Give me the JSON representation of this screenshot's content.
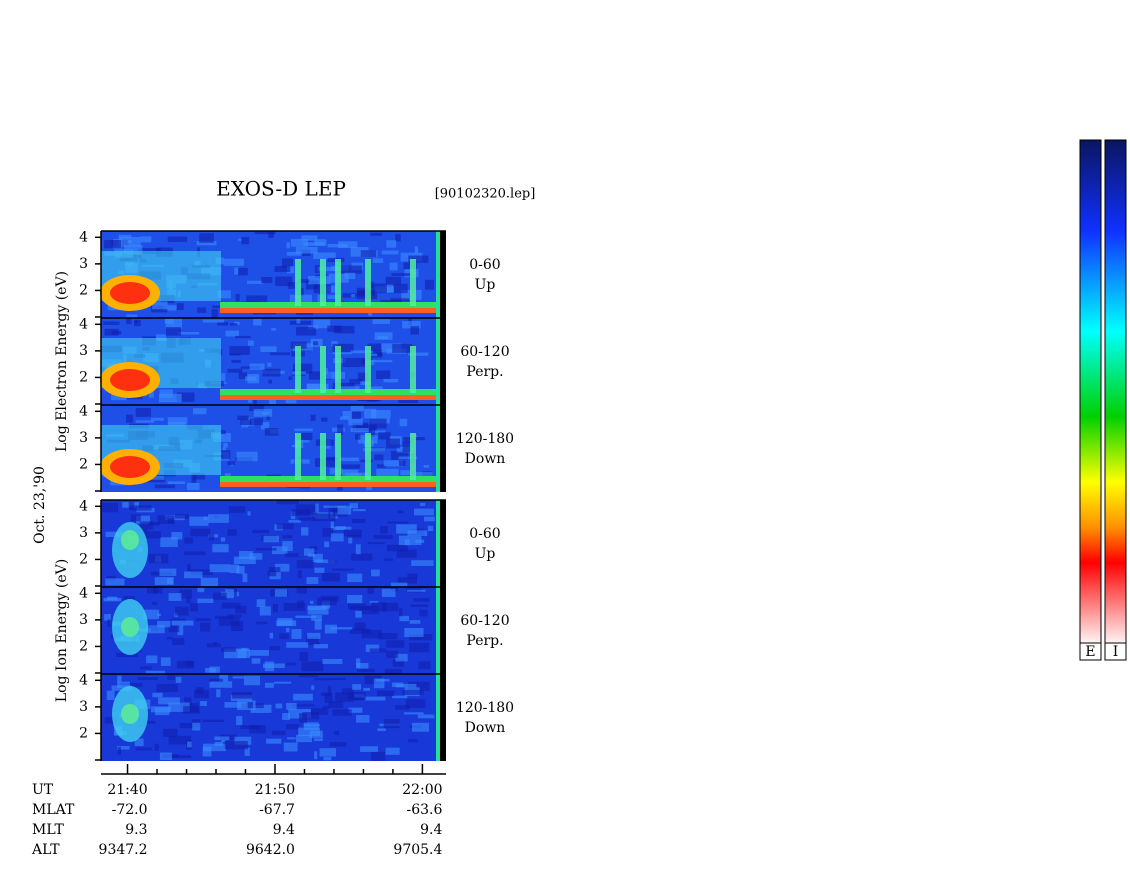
{
  "chart_data": {
    "type": "spectrogram",
    "title": "EXOS-D LEP",
    "subtitle": "[90102320.lep]",
    "date_label": "Oct. 23,'90",
    "groups": [
      {
        "ylabel": "Log  Electron  Energy (eV)",
        "panels": [
          {
            "angle": "0-60",
            "direction": "Up"
          },
          {
            "angle": "60-120",
            "direction": "Perp."
          },
          {
            "angle": "120-180",
            "direction": "Down"
          }
        ]
      },
      {
        "ylabel": "Log  Ion  Energy (eV)",
        "panels": [
          {
            "angle": "0-60",
            "direction": "Up"
          },
          {
            "angle": "60-120",
            "direction": "Perp."
          },
          {
            "angle": "120-180",
            "direction": "Down"
          }
        ]
      }
    ],
    "ylim": [
      1,
      4.2
    ],
    "yticks": [
      2,
      3,
      4
    ],
    "xlabel": "UT",
    "xlim": [
      1298.2,
      1321.6
    ],
    "xticks": [
      {
        "value": 1300,
        "label": "21:40"
      },
      {
        "value": 1310,
        "label": "21:50"
      },
      {
        "value": 1320,
        "label": "22:00"
      }
    ],
    "xminor_ticks": [
      1302,
      1304,
      1306,
      1308,
      1312,
      1314,
      1316,
      1318
    ],
    "rows": [
      {
        "label": "MLAT",
        "values": [
          "-72.0",
          "-67.7",
          "-63.6"
        ]
      },
      {
        "label": "MLT",
        "values": [
          "9.3",
          "9.4",
          "9.4"
        ]
      },
      {
        "label": "ALT",
        "values": [
          "9347.2",
          "9642.0",
          "9705.4"
        ]
      }
    ],
    "colorbars": [
      "E",
      "I"
    ]
  }
}
